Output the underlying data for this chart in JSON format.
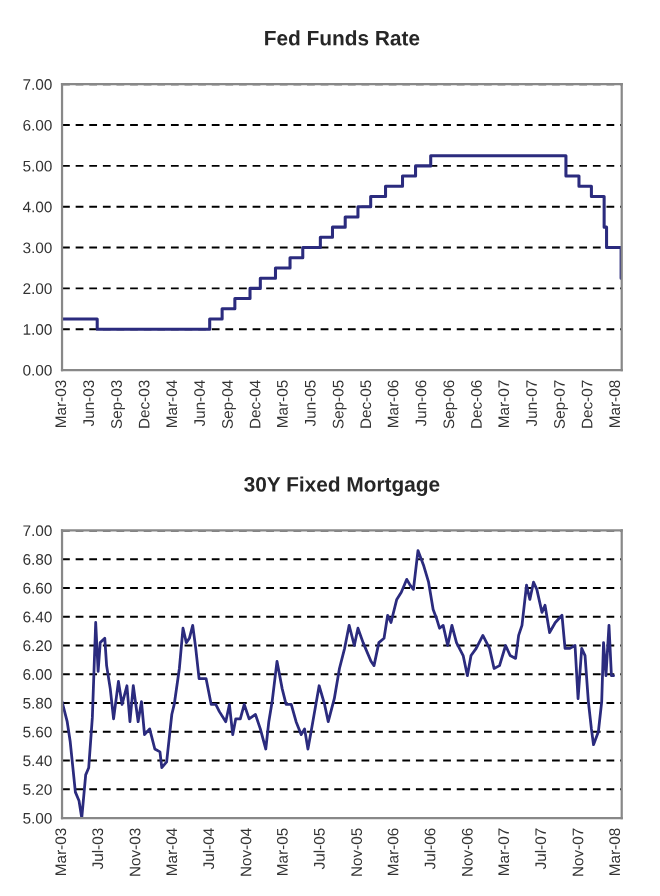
{
  "chart_data": [
    {
      "type": "step",
      "title": "Fed Funds Rate",
      "x": [
        "2003-03-01",
        "2003-06-25",
        "2004-06-30",
        "2004-08-10",
        "2004-09-21",
        "2004-11-10",
        "2004-12-14",
        "2005-02-02",
        "2005-03-22",
        "2005-05-03",
        "2005-06-30",
        "2005-08-09",
        "2005-09-20",
        "2005-11-01",
        "2005-12-13",
        "2006-01-31",
        "2006-03-28",
        "2006-05-10",
        "2006-06-29",
        "2007-09-18",
        "2007-10-31",
        "2007-12-11",
        "2008-01-22",
        "2008-01-30",
        "2008-03-18"
      ],
      "series": [
        {
          "color": "#2b2b7e",
          "values": [
            1.25,
            1.0,
            1.25,
            1.5,
            1.75,
            2.0,
            2.25,
            2.5,
            2.75,
            3.0,
            3.25,
            3.5,
            3.75,
            4.0,
            4.25,
            4.5,
            4.75,
            5.0,
            5.25,
            4.75,
            4.5,
            4.25,
            3.5,
            3.0,
            2.25
          ]
        }
      ],
      "xlim": [
        "2003-03-01",
        "2008-03-20"
      ],
      "xticks": [
        {
          "value": "2003-03-01",
          "label": "Mar-03"
        },
        {
          "value": "2003-06-01",
          "label": "Jun-03"
        },
        {
          "value": "2003-09-01",
          "label": "Sep-03"
        },
        {
          "value": "2003-12-01",
          "label": "Dec-03"
        },
        {
          "value": "2004-03-01",
          "label": "Mar-04"
        },
        {
          "value": "2004-06-01",
          "label": "Jun-04"
        },
        {
          "value": "2004-09-01",
          "label": "Sep-04"
        },
        {
          "value": "2004-12-01",
          "label": "Dec-04"
        },
        {
          "value": "2005-03-01",
          "label": "Mar-05"
        },
        {
          "value": "2005-06-01",
          "label": "Jun-05"
        },
        {
          "value": "2005-09-01",
          "label": "Sep-05"
        },
        {
          "value": "2005-12-01",
          "label": "Dec-05"
        },
        {
          "value": "2006-03-01",
          "label": "Mar-06"
        },
        {
          "value": "2006-06-01",
          "label": "Jun-06"
        },
        {
          "value": "2006-09-01",
          "label": "Sep-06"
        },
        {
          "value": "2006-12-01",
          "label": "Dec-06"
        },
        {
          "value": "2007-03-01",
          "label": "Mar-07"
        },
        {
          "value": "2007-06-01",
          "label": "Jun-07"
        },
        {
          "value": "2007-09-01",
          "label": "Sep-07"
        },
        {
          "value": "2007-12-01",
          "label": "Dec-07"
        },
        {
          "value": "2008-03-01",
          "label": "Mar-08"
        }
      ],
      "ylim": [
        0,
        7
      ],
      "yticks": [
        {
          "value": 0,
          "label": "0.00"
        },
        {
          "value": 1,
          "label": "1.00"
        },
        {
          "value": 2,
          "label": "2.00"
        },
        {
          "value": 3,
          "label": "3.00"
        },
        {
          "value": 4,
          "label": "4.00"
        },
        {
          "value": 5,
          "label": "5.00"
        },
        {
          "value": 6,
          "label": "6.00"
        },
        {
          "value": 7,
          "label": "7.00"
        }
      ],
      "grid": "y"
    },
    {
      "type": "line",
      "title": "30Y Fixed Mortgage",
      "x": [
        "2003-03-01",
        "2003-03-18",
        "2003-03-28",
        "2003-04-14",
        "2003-04-26",
        "2003-05-05",
        "2003-05-18",
        "2003-05-28",
        "2003-06-09",
        "2003-06-20",
        "2003-06-28",
        "2003-07-05",
        "2003-07-20",
        "2003-07-26",
        "2003-08-07",
        "2003-08-18",
        "2003-09-03",
        "2003-09-15",
        "2003-10-01",
        "2003-10-11",
        "2003-10-22",
        "2003-11-07",
        "2003-11-18",
        "2003-11-28",
        "2003-12-15",
        "2004-01-01",
        "2004-01-18",
        "2004-01-24",
        "2004-02-09",
        "2004-02-26",
        "2004-03-05",
        "2004-03-22",
        "2004-04-03",
        "2004-04-14",
        "2004-04-24",
        "2004-05-05",
        "2004-05-15",
        "2004-05-26",
        "2004-06-18",
        "2004-07-05",
        "2004-07-20",
        "2004-08-01",
        "2004-08-22",
        "2004-09-03",
        "2004-09-14",
        "2004-09-24",
        "2004-10-09",
        "2004-10-22",
        "2004-11-07",
        "2004-11-28",
        "2004-12-14",
        "2005-01-01",
        "2005-01-11",
        "2005-01-22",
        "2005-02-07",
        "2005-02-24",
        "2005-03-09",
        "2005-03-26",
        "2005-04-11",
        "2005-04-28",
        "2005-05-09",
        "2005-05-20",
        "2005-06-01",
        "2005-06-11",
        "2005-06-26",
        "2005-07-14",
        "2005-07-26",
        "2005-08-15",
        "2005-09-01",
        "2005-09-18",
        "2005-10-03",
        "2005-10-20",
        "2005-11-01",
        "2005-11-18",
        "2005-12-14",
        "2005-12-24",
        "2006-01-09",
        "2006-01-26",
        "2006-02-07",
        "2006-02-18",
        "2006-03-09",
        "2006-03-24",
        "2006-04-11",
        "2006-04-22",
        "2006-05-03",
        "2006-05-18",
        "2006-06-05",
        "2006-06-22",
        "2006-07-07",
        "2006-07-18",
        "2006-07-28",
        "2006-08-09",
        "2006-08-24",
        "2006-09-07",
        "2006-09-22",
        "2006-10-14",
        "2006-10-28",
        "2006-11-09",
        "2006-11-26",
        "2006-12-18",
        "2007-01-09",
        "2007-01-24",
        "2007-02-11",
        "2007-03-03",
        "2007-03-18",
        "2007-04-05",
        "2007-04-15",
        "2007-04-26",
        "2007-05-11",
        "2007-05-22",
        "2007-06-03",
        "2007-06-14",
        "2007-07-01",
        "2007-07-11",
        "2007-07-26",
        "2007-08-14",
        "2007-09-05",
        "2007-09-15",
        "2007-10-01",
        "2007-10-18",
        "2007-10-28",
        "2007-11-09",
        "2007-11-20",
        "2007-12-01",
        "2007-12-11",
        "2007-12-18",
        "2008-01-03",
        "2008-01-14",
        "2008-01-20",
        "2008-01-28",
        "2008-02-07",
        "2008-02-15",
        "2008-02-22"
      ],
      "series": [
        {
          "color": "#2b2b7e",
          "values": [
            5.81,
            5.67,
            5.53,
            5.18,
            5.12,
            5.0,
            5.3,
            5.35,
            5.7,
            6.36,
            6.02,
            6.22,
            6.25,
            6.06,
            5.9,
            5.69,
            5.95,
            5.79,
            5.92,
            5.67,
            5.92,
            5.67,
            5.81,
            5.58,
            5.62,
            5.48,
            5.46,
            5.35,
            5.39,
            5.72,
            5.79,
            6.04,
            6.32,
            6.22,
            6.25,
            6.34,
            6.18,
            5.97,
            5.97,
            5.79,
            5.79,
            5.74,
            5.67,
            5.79,
            5.58,
            5.69,
            5.69,
            5.79,
            5.69,
            5.72,
            5.62,
            5.48,
            5.67,
            5.81,
            6.09,
            5.9,
            5.79,
            5.79,
            5.67,
            5.58,
            5.62,
            5.48,
            5.62,
            5.74,
            5.92,
            5.79,
            5.67,
            5.83,
            6.04,
            6.18,
            6.34,
            6.2,
            6.32,
            6.22,
            6.09,
            6.06,
            6.22,
            6.25,
            6.41,
            6.36,
            6.52,
            6.57,
            6.66,
            6.62,
            6.59,
            6.86,
            6.76,
            6.64,
            6.45,
            6.39,
            6.32,
            6.34,
            6.2,
            6.34,
            6.22,
            6.13,
            5.99,
            6.13,
            6.18,
            6.27,
            6.18,
            6.04,
            6.06,
            6.2,
            6.13,
            6.11,
            6.27,
            6.34,
            6.62,
            6.52,
            6.64,
            6.59,
            6.43,
            6.48,
            6.29,
            6.36,
            6.41,
            6.18,
            6.18,
            6.2,
            5.83,
            6.18,
            6.13,
            5.81,
            5.62,
            5.51,
            5.6,
            5.81,
            6.22,
            5.99,
            6.34,
            5.99,
            5.99
          ]
        }
      ],
      "xlim": [
        "2003-03-01",
        "2008-03-20"
      ],
      "xticks": [
        {
          "value": "2003-03-01",
          "label": "Mar-03"
        },
        {
          "value": "2003-07-01",
          "label": "Jul-03"
        },
        {
          "value": "2003-11-01",
          "label": "Nov-03"
        },
        {
          "value": "2004-03-01",
          "label": "Mar-04"
        },
        {
          "value": "2004-07-01",
          "label": "Jul-04"
        },
        {
          "value": "2004-11-01",
          "label": "Nov-04"
        },
        {
          "value": "2005-03-01",
          "label": "Mar-05"
        },
        {
          "value": "2005-07-01",
          "label": "Jul-05"
        },
        {
          "value": "2005-11-01",
          "label": "Nov-05"
        },
        {
          "value": "2006-03-01",
          "label": "Mar-06"
        },
        {
          "value": "2006-07-01",
          "label": "Jul-06"
        },
        {
          "value": "2006-11-01",
          "label": "Nov-06"
        },
        {
          "value": "2007-03-01",
          "label": "Mar-07"
        },
        {
          "value": "2007-07-01",
          "label": "Jul-07"
        },
        {
          "value": "2007-11-01",
          "label": "Nov-07"
        },
        {
          "value": "2008-03-01",
          "label": "Mar-08"
        }
      ],
      "ylim": [
        5,
        7
      ],
      "yticks": [
        {
          "value": 5,
          "label": "5.00"
        },
        {
          "value": 5.2,
          "label": "5.20"
        },
        {
          "value": 5.4,
          "label": "5.40"
        },
        {
          "value": 5.6,
          "label": "5.60"
        },
        {
          "value": 5.8,
          "label": "5.80"
        },
        {
          "value": 6,
          "label": "6.00"
        },
        {
          "value": 6.2,
          "label": "6.20"
        },
        {
          "value": 6.4,
          "label": "6.40"
        },
        {
          "value": 6.6,
          "label": "6.60"
        },
        {
          "value": 6.8,
          "label": "6.80"
        },
        {
          "value": 7,
          "label": "7.00"
        }
      ],
      "grid": "y"
    }
  ]
}
